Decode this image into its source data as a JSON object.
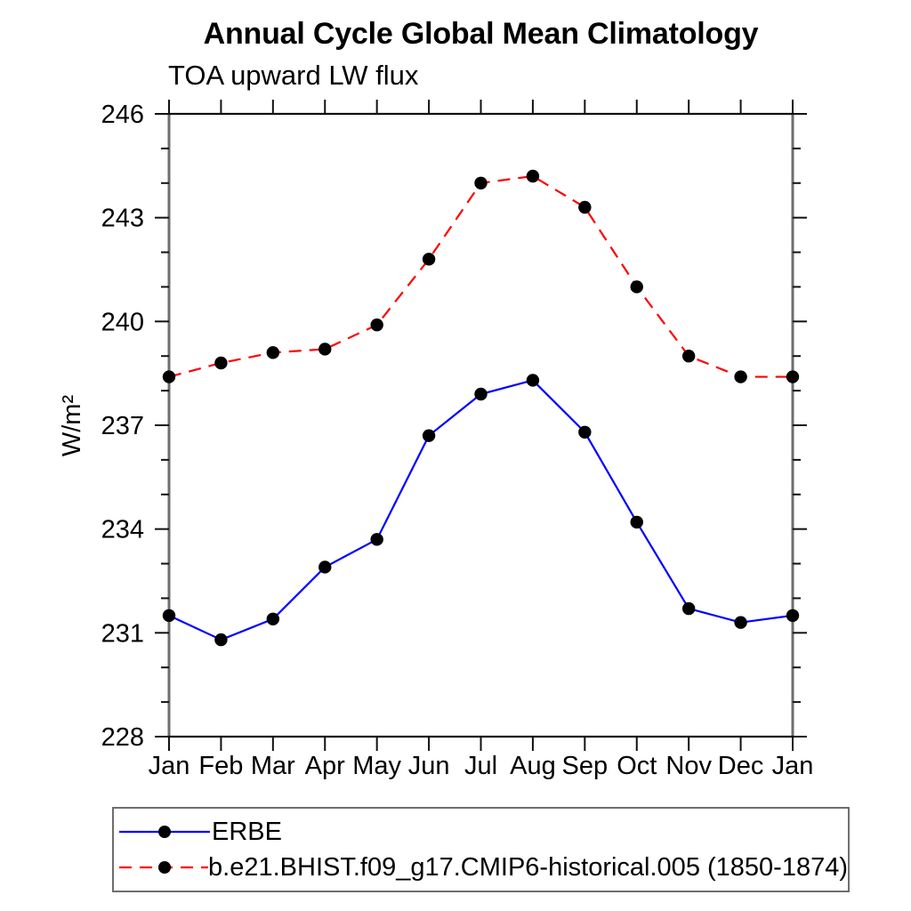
{
  "chart_data": {
    "type": "line",
    "title": "Annual Cycle Global Mean Climatology",
    "subtitle": "TOA upward LW flux",
    "ylabel": "W/m²",
    "ylim": [
      228,
      246
    ],
    "ytick_major": [
      228,
      231,
      234,
      237,
      240,
      243,
      246
    ],
    "ytick_minor_step": 1,
    "grid": false,
    "legend_position": "bottom",
    "x_categories": [
      "Jan",
      "Feb",
      "Mar",
      "Apr",
      "May",
      "Jun",
      "Jul",
      "Aug",
      "Sep",
      "Oct",
      "Nov",
      "Dec",
      "Jan"
    ],
    "series": [
      {
        "name": "ERBE",
        "color": "#0000ff",
        "line_style": "solid",
        "marker": "filled-circle",
        "marker_color": "#000000",
        "values": [
          231.5,
          230.8,
          231.4,
          232.9,
          233.7,
          236.7,
          237.9,
          238.3,
          236.8,
          234.2,
          231.7,
          231.3,
          231.5
        ]
      },
      {
        "name": "b.e21.BHIST.f09_g17.CMIP6-historical.005 (1850-1874)",
        "color": "#ff0000",
        "line_style": "dashed",
        "marker": "filled-circle",
        "marker_color": "#000000",
        "values": [
          238.4,
          238.8,
          239.1,
          239.2,
          239.9,
          241.8,
          244.0,
          244.2,
          243.3,
          241.0,
          239.0,
          238.4,
          238.4
        ]
      }
    ]
  }
}
